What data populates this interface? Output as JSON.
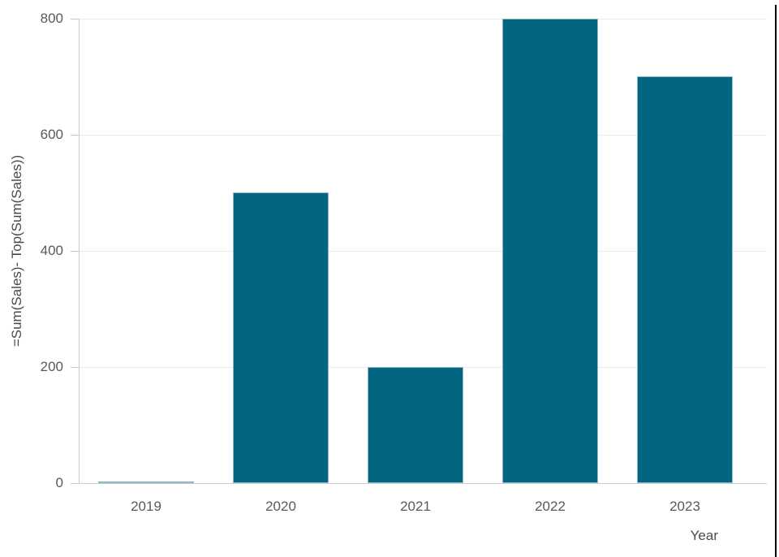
{
  "chart_data": {
    "type": "bar",
    "title": "",
    "categories": [
      "2019",
      "2020",
      "2021",
      "2022",
      "2023"
    ],
    "values": [
      0,
      500,
      200,
      800,
      700
    ],
    "xlabel": "Year",
    "ylabel": "=Sum(Sales)- Top(Sum(Sales))",
    "yticks": [
      0,
      200,
      400,
      600,
      800
    ],
    "ylim": [
      0,
      800
    ],
    "grid": true,
    "legend": "none",
    "bar_color": "#026680",
    "bar_border_color": "#8fb8c6",
    "gridline_color": "#eaeaea",
    "tick_mark_color": "#c6c6c6",
    "axis_line_color": "#cdcdcd",
    "tick_label_color": "#595959",
    "axis_title_color": "#4a4a4a"
  },
  "frame": {
    "right_edge_color": "#000000"
  }
}
